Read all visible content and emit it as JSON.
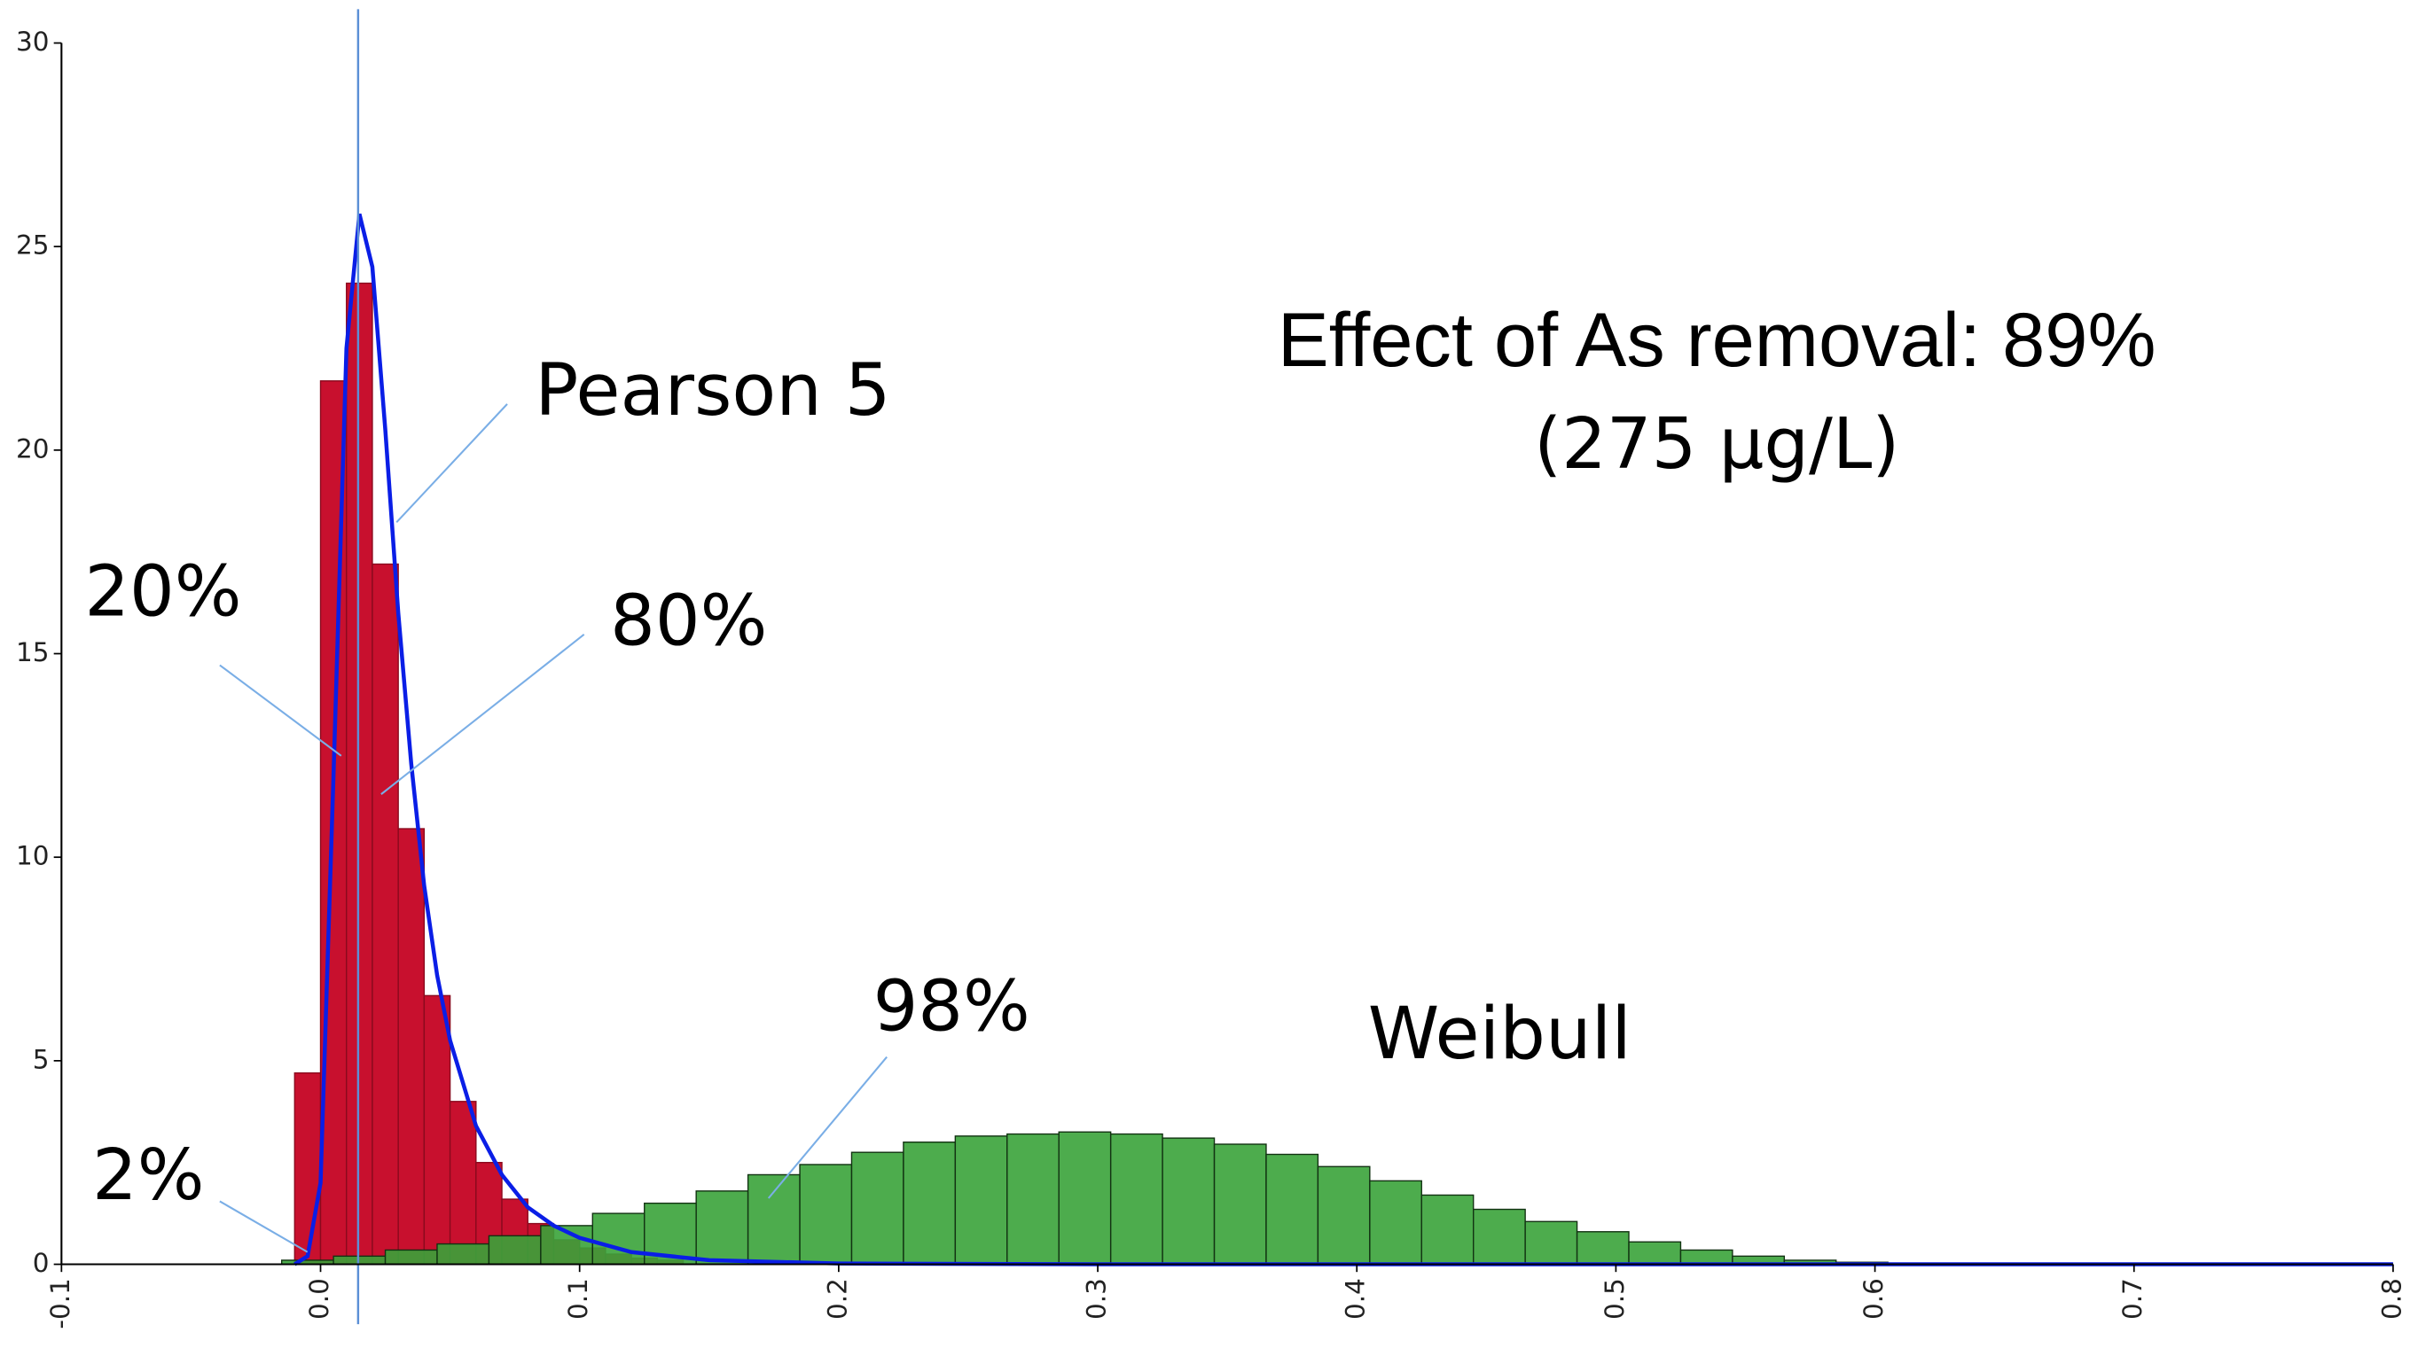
{
  "chart_data": {
    "type": "histogram",
    "xlim": [
      -0.1,
      0.8
    ],
    "ylim": [
      0,
      30
    ],
    "xticks": [
      -0.1,
      {
        "value": 0,
        "label": "0.0"
      },
      0.1,
      0.2,
      0.3,
      0.4,
      0.5,
      0.6,
      0.7,
      0.8
    ],
    "yticks": [
      0,
      5,
      10,
      15,
      20,
      25,
      30
    ],
    "histograms": [
      {
        "color": "#c8102e",
        "bins": [
          -0.01,
          0,
          0.01,
          0.02,
          0.03,
          0.04,
          0.05,
          0.06,
          0.07,
          0.08,
          0.09,
          0.1,
          0.11,
          0.12,
          0.13,
          0.14
        ],
        "values": [
          4.7,
          21.7,
          24.1,
          17.2,
          10.7,
          6.6,
          4.0,
          2.5,
          1.6,
          1.0,
          0.6,
          0.4,
          0.25,
          0.15,
          0.1
        ]
      },
      {
        "color": "#3aa33a",
        "bins": [
          -0.015,
          0.005,
          0.025,
          0.045,
          0.065,
          0.085,
          0.105,
          0.125,
          0.145,
          0.165,
          0.185,
          0.205,
          0.225,
          0.245,
          0.265,
          0.285,
          0.305,
          0.325,
          0.345,
          0.365,
          0.385,
          0.405,
          0.425,
          0.445,
          0.465,
          0.485,
          0.505,
          0.525,
          0.545,
          0.565,
          0.585,
          0.605
        ],
        "values": [
          0.1,
          0.2,
          0.35,
          0.5,
          0.7,
          0.95,
          1.25,
          1.5,
          1.8,
          2.2,
          2.45,
          2.75,
          3.0,
          3.15,
          3.2,
          3.25,
          3.2,
          3.1,
          2.95,
          2.7,
          2.4,
          2.05,
          1.7,
          1.35,
          1.05,
          0.8,
          0.55,
          0.35,
          0.2,
          0.1,
          0.05
        ]
      }
    ],
    "curve": {
      "color": "#0a1ee6",
      "x": [
        -0.01,
        -0.005,
        0,
        0.005,
        0.01,
        0.015,
        0.02,
        0.025,
        0.03,
        0.035,
        0.04,
        0.045,
        0.05,
        0.06,
        0.07,
        0.08,
        0.09,
        0.1,
        0.12,
        0.15,
        0.2,
        0.3,
        0.8
      ],
      "values": [
        0,
        0.2,
        2,
        12,
        22.5,
        25.8,
        24.5,
        20.5,
        16,
        12.3,
        9.3,
        7.1,
        5.5,
        3.4,
        2.2,
        1.4,
        0.95,
        0.65,
        0.3,
        0.1,
        0.02,
        0,
        0
      ]
    },
    "reference_line": 0.0145,
    "reference_line_color": "#5b8fd6",
    "annotations": [
      "Pearson 5",
      "Weibull",
      "20%",
      "80%",
      "98%",
      "2%",
      "Effect of As removal:  89%",
      "(275 µg/L)"
    ]
  }
}
